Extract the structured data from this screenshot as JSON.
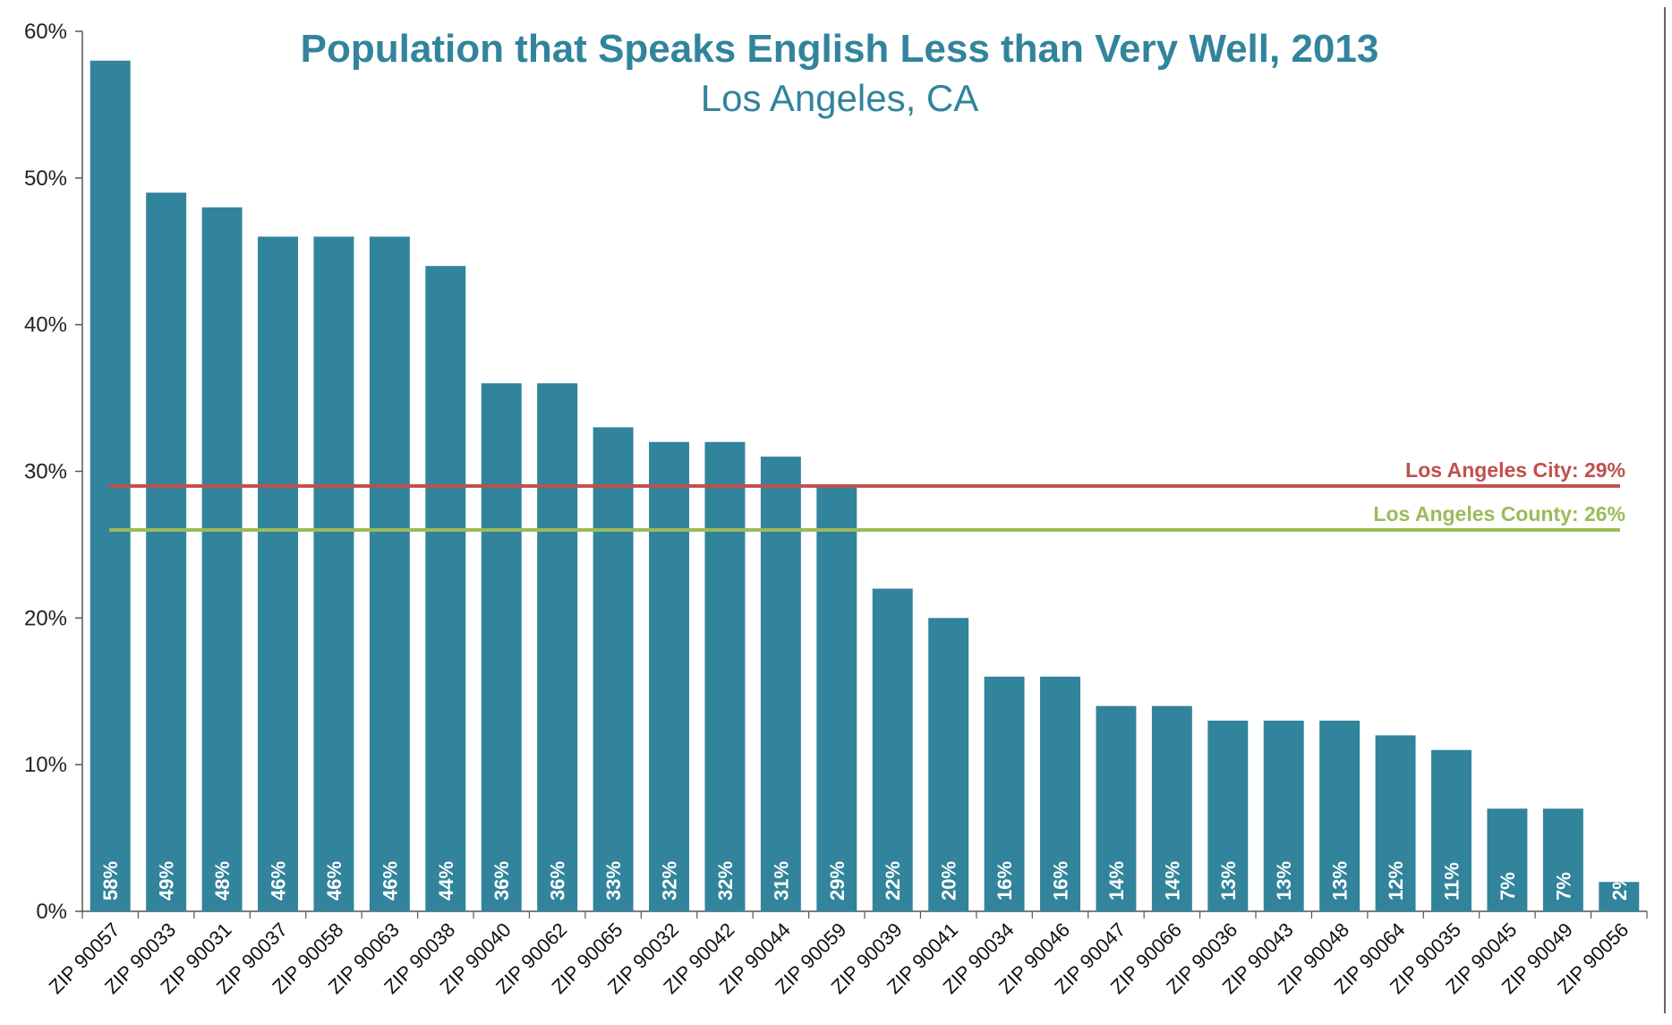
{
  "chart_data": {
    "type": "bar",
    "title": "Population that Speaks English Less than Very Well, 2013",
    "subtitle": "Los Angeles, CA",
    "xlabel": "",
    "ylabel": "",
    "ylim": [
      0,
      60
    ],
    "yticks": [
      "0%",
      "10%",
      "20%",
      "30%",
      "40%",
      "50%",
      "60%"
    ],
    "categories": [
      "ZIP 90057",
      "ZIP 90033",
      "ZIP 90031",
      "ZIP 90037",
      "ZIP 90058",
      "ZIP 90063",
      "ZIP 90038",
      "ZIP 90040",
      "ZIP 90062",
      "ZIP 90065",
      "ZIP 90032",
      "ZIP 90042",
      "ZIP 90044",
      "ZIP 90059",
      "ZIP 90039",
      "ZIP 90041",
      "ZIP 90034",
      "ZIP 90046",
      "ZIP 90047",
      "ZIP 90066",
      "ZIP 90036",
      "ZIP 90043",
      "ZIP 90048",
      "ZIP 90064",
      "ZIP 90035",
      "ZIP 90045",
      "ZIP 90049",
      "ZIP 90056"
    ],
    "values": [
      58,
      49,
      48,
      46,
      46,
      46,
      44,
      36,
      36,
      33,
      32,
      32,
      31,
      29,
      22,
      20,
      16,
      16,
      14,
      14,
      13,
      13,
      13,
      12,
      11,
      7,
      7,
      2
    ],
    "data_labels": [
      "58%",
      "49%",
      "48%",
      "46%",
      "46%",
      "46%",
      "44%",
      "36%",
      "36%",
      "33%",
      "32%",
      "32%",
      "31%",
      "29%",
      "22%",
      "20%",
      "16%",
      "16%",
      "14%",
      "14%",
      "13%",
      "13%",
      "13%",
      "12%",
      "11%",
      "7%",
      "7%",
      "2%"
    ],
    "reference_lines": [
      {
        "label": "Los Angeles City: 29%",
        "value": 29,
        "color": "#c0504d"
      },
      {
        "label": "Los Angeles County: 26%",
        "value": 26,
        "color": "#9bbb59"
      }
    ],
    "bar_color": "#31849b",
    "grid": false,
    "legend": "none"
  }
}
